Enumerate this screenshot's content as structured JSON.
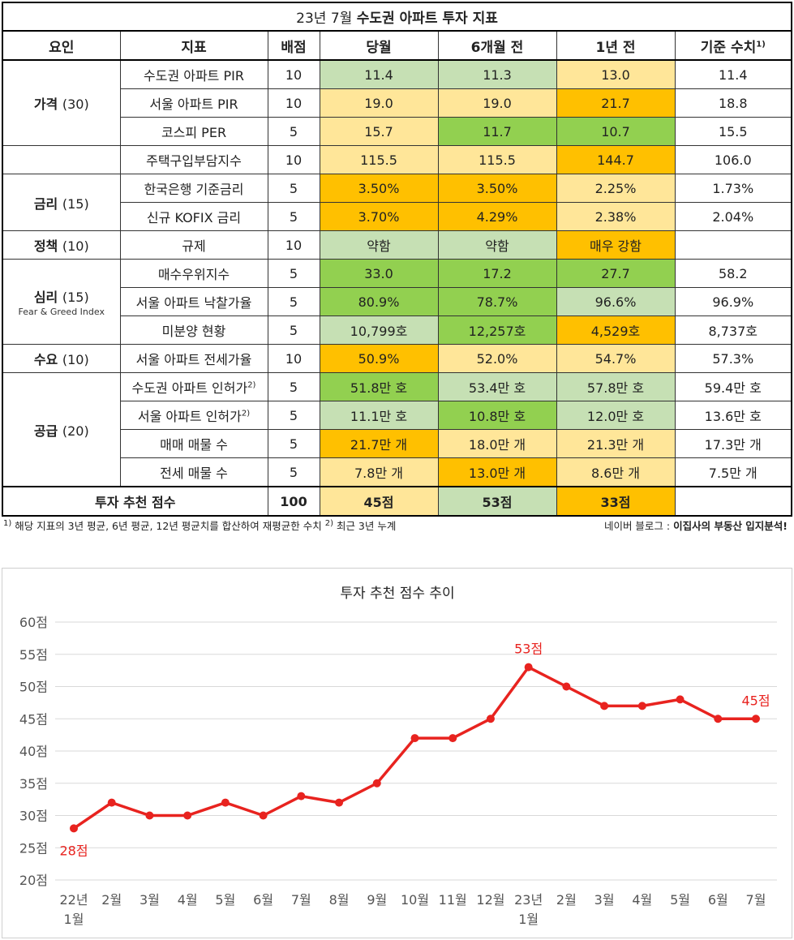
{
  "table": {
    "title_prefix": "23년 7월 ",
    "title_bold": "수도권 아파트 투자 지표",
    "headers": {
      "factor": "요인",
      "indicator": "지표",
      "weight": "배점",
      "current": "당월",
      "m6": "6개월 전",
      "y1": "1년 전",
      "base": "기준 수치",
      "base_sup": "1)"
    },
    "groups": {
      "price": {
        "name": "가격",
        "score": "(30)"
      },
      "rate": {
        "name": "금리",
        "score": "(15)"
      },
      "policy": {
        "name": "정책",
        "score": "(10)"
      },
      "sentiment": {
        "name": "심리",
        "score": "(15)",
        "sub": "Fear & Greed Index"
      },
      "demand": {
        "name": "수요",
        "score": "(10)"
      },
      "supply": {
        "name": "공급",
        "score": "(20)"
      }
    },
    "rows": [
      {
        "indicator": "수도권 아파트 PIR",
        "weight": "10",
        "current": "11.4",
        "m6": "11.3",
        "y1": "13.0",
        "base": "11.4",
        "colors": [
          "lg",
          "lg",
          "y"
        ]
      },
      {
        "indicator": "서울 아파트 PIR",
        "weight": "10",
        "current": "19.0",
        "m6": "19.0",
        "y1": "21.7",
        "base": "18.8",
        "colors": [
          "y",
          "y",
          "o"
        ]
      },
      {
        "indicator": "코스피 PER",
        "weight": "5",
        "current": "15.7",
        "m6": "11.7",
        "y1": "10.7",
        "base": "15.5",
        "colors": [
          "y",
          "g",
          "g"
        ]
      },
      {
        "indicator": "주택구입부담지수",
        "weight": "10",
        "current": "115.5",
        "m6": "115.5",
        "y1": "144.7",
        "base": "106.0",
        "colors": [
          "y",
          "y",
          "o"
        ]
      },
      {
        "indicator": "한국은행 기준금리",
        "weight": "5",
        "current": "3.50%",
        "m6": "3.50%",
        "y1": "2.25%",
        "base": "1.73%",
        "colors": [
          "o",
          "o",
          "y"
        ]
      },
      {
        "indicator": "신규 KOFIX 금리",
        "weight": "5",
        "current": "3.70%",
        "m6": "4.29%",
        "y1": "2.38%",
        "base": "2.04%",
        "colors": [
          "o",
          "o",
          "y"
        ]
      },
      {
        "indicator": "규제",
        "weight": "10",
        "current": "약함",
        "m6": "약함",
        "y1": "매우 강함",
        "base": "",
        "colors": [
          "lg",
          "lg",
          "o"
        ]
      },
      {
        "indicator": "매수우위지수",
        "weight": "5",
        "current": "33.0",
        "m6": "17.2",
        "y1": "27.7",
        "base": "58.2",
        "colors": [
          "g",
          "g",
          "g"
        ]
      },
      {
        "indicator": "서울 아파트 낙찰가율",
        "weight": "5",
        "current": "80.9%",
        "m6": "78.7%",
        "y1": "96.6%",
        "base": "96.9%",
        "colors": [
          "g",
          "g",
          "lg"
        ]
      },
      {
        "indicator": "미분양 현황",
        "weight": "5",
        "current": "10,799호",
        "m6": "12,257호",
        "y1": "4,529호",
        "base": "8,737호",
        "colors": [
          "lg",
          "g",
          "o"
        ]
      },
      {
        "indicator": "서울 아파트 전세가율",
        "weight": "10",
        "current": "50.9%",
        "m6": "52.0%",
        "y1": "54.7%",
        "base": "57.3%",
        "colors": [
          "o",
          "y",
          "y"
        ]
      },
      {
        "indicator": "수도권 아파트 인허가",
        "sup": "2)",
        "weight": "5",
        "current": "51.8만 호",
        "m6": "53.4만 호",
        "y1": "57.8만 호",
        "base": "59.4만 호",
        "colors": [
          "g",
          "lg",
          "lg"
        ]
      },
      {
        "indicator": "서울 아파트 인허가",
        "sup": "2)",
        "weight": "5",
        "current": "11.1만 호",
        "m6": "10.8만 호",
        "y1": "12.0만 호",
        "base": "13.6만 호",
        "colors": [
          "lg",
          "g",
          "lg"
        ]
      },
      {
        "indicator": "매매 매물 수",
        "weight": "5",
        "current": "21.7만 개",
        "m6": "18.0만 개",
        "y1": "21.3만 개",
        "base": "17.3만 개",
        "colors": [
          "o",
          "y",
          "y"
        ]
      },
      {
        "indicator": "전세 매물 수",
        "weight": "5",
        "current": "7.8만 개",
        "m6": "13.0만 개",
        "y1": "8.6만 개",
        "base": "7.5만 개",
        "colors": [
          "y",
          "o",
          "y"
        ]
      }
    ],
    "total": {
      "label": "투자 추천 점수",
      "weight": "100",
      "current": "45점",
      "m6": "53점",
      "y1": "33점",
      "base": "",
      "colors": [
        "y",
        "lg",
        "o"
      ]
    }
  },
  "notes": {
    "sup1": "1)",
    "text1": " 해당 지표의 3년 평균, 6년 평균, 12년 평균치를 합산하여 재평균한 수치 ",
    "sup2": "2)",
    "text2": " 최근 3년 누계",
    "source_prefix": "네이버 블로그 : ",
    "source_bold": "이집사의 부동산 입지분석!"
  },
  "colors": {
    "y": "#ffe699",
    "o": "#ffc000",
    "lg": "#c6e0b4",
    "g": "#92d050",
    "line": "#e8231f"
  },
  "chart_data": {
    "type": "line",
    "title": "투자 추천 점수 추이",
    "x": [
      [
        "22년",
        "1월"
      ],
      [
        "2월"
      ],
      [
        "3월"
      ],
      [
        "4월"
      ],
      [
        "5월"
      ],
      [
        "6월"
      ],
      [
        "7월"
      ],
      [
        "8월"
      ],
      [
        "9월"
      ],
      [
        "10월"
      ],
      [
        "11월"
      ],
      [
        "12월"
      ],
      [
        "23년",
        "1월"
      ],
      [
        "2월"
      ],
      [
        "3월"
      ],
      [
        "4월"
      ],
      [
        "5월"
      ],
      [
        "6월"
      ],
      [
        "7월"
      ]
    ],
    "series": [
      {
        "values": [
          28,
          32,
          30,
          30,
          32,
          30,
          33,
          32,
          35,
          42,
          42,
          45,
          53,
          50,
          47,
          47,
          48,
          45,
          45
        ]
      }
    ],
    "ylim": [
      20,
      60
    ],
    "yticks": [
      "20점",
      "25점",
      "30점",
      "35점",
      "40점",
      "45점",
      "50점",
      "55점",
      "60점"
    ],
    "annotations": [
      {
        "index": 0,
        "text": "28점"
      },
      {
        "index": 12,
        "text": "53점"
      },
      {
        "index": 18,
        "text": "45점"
      }
    ],
    "grid": true,
    "legend": "none"
  }
}
